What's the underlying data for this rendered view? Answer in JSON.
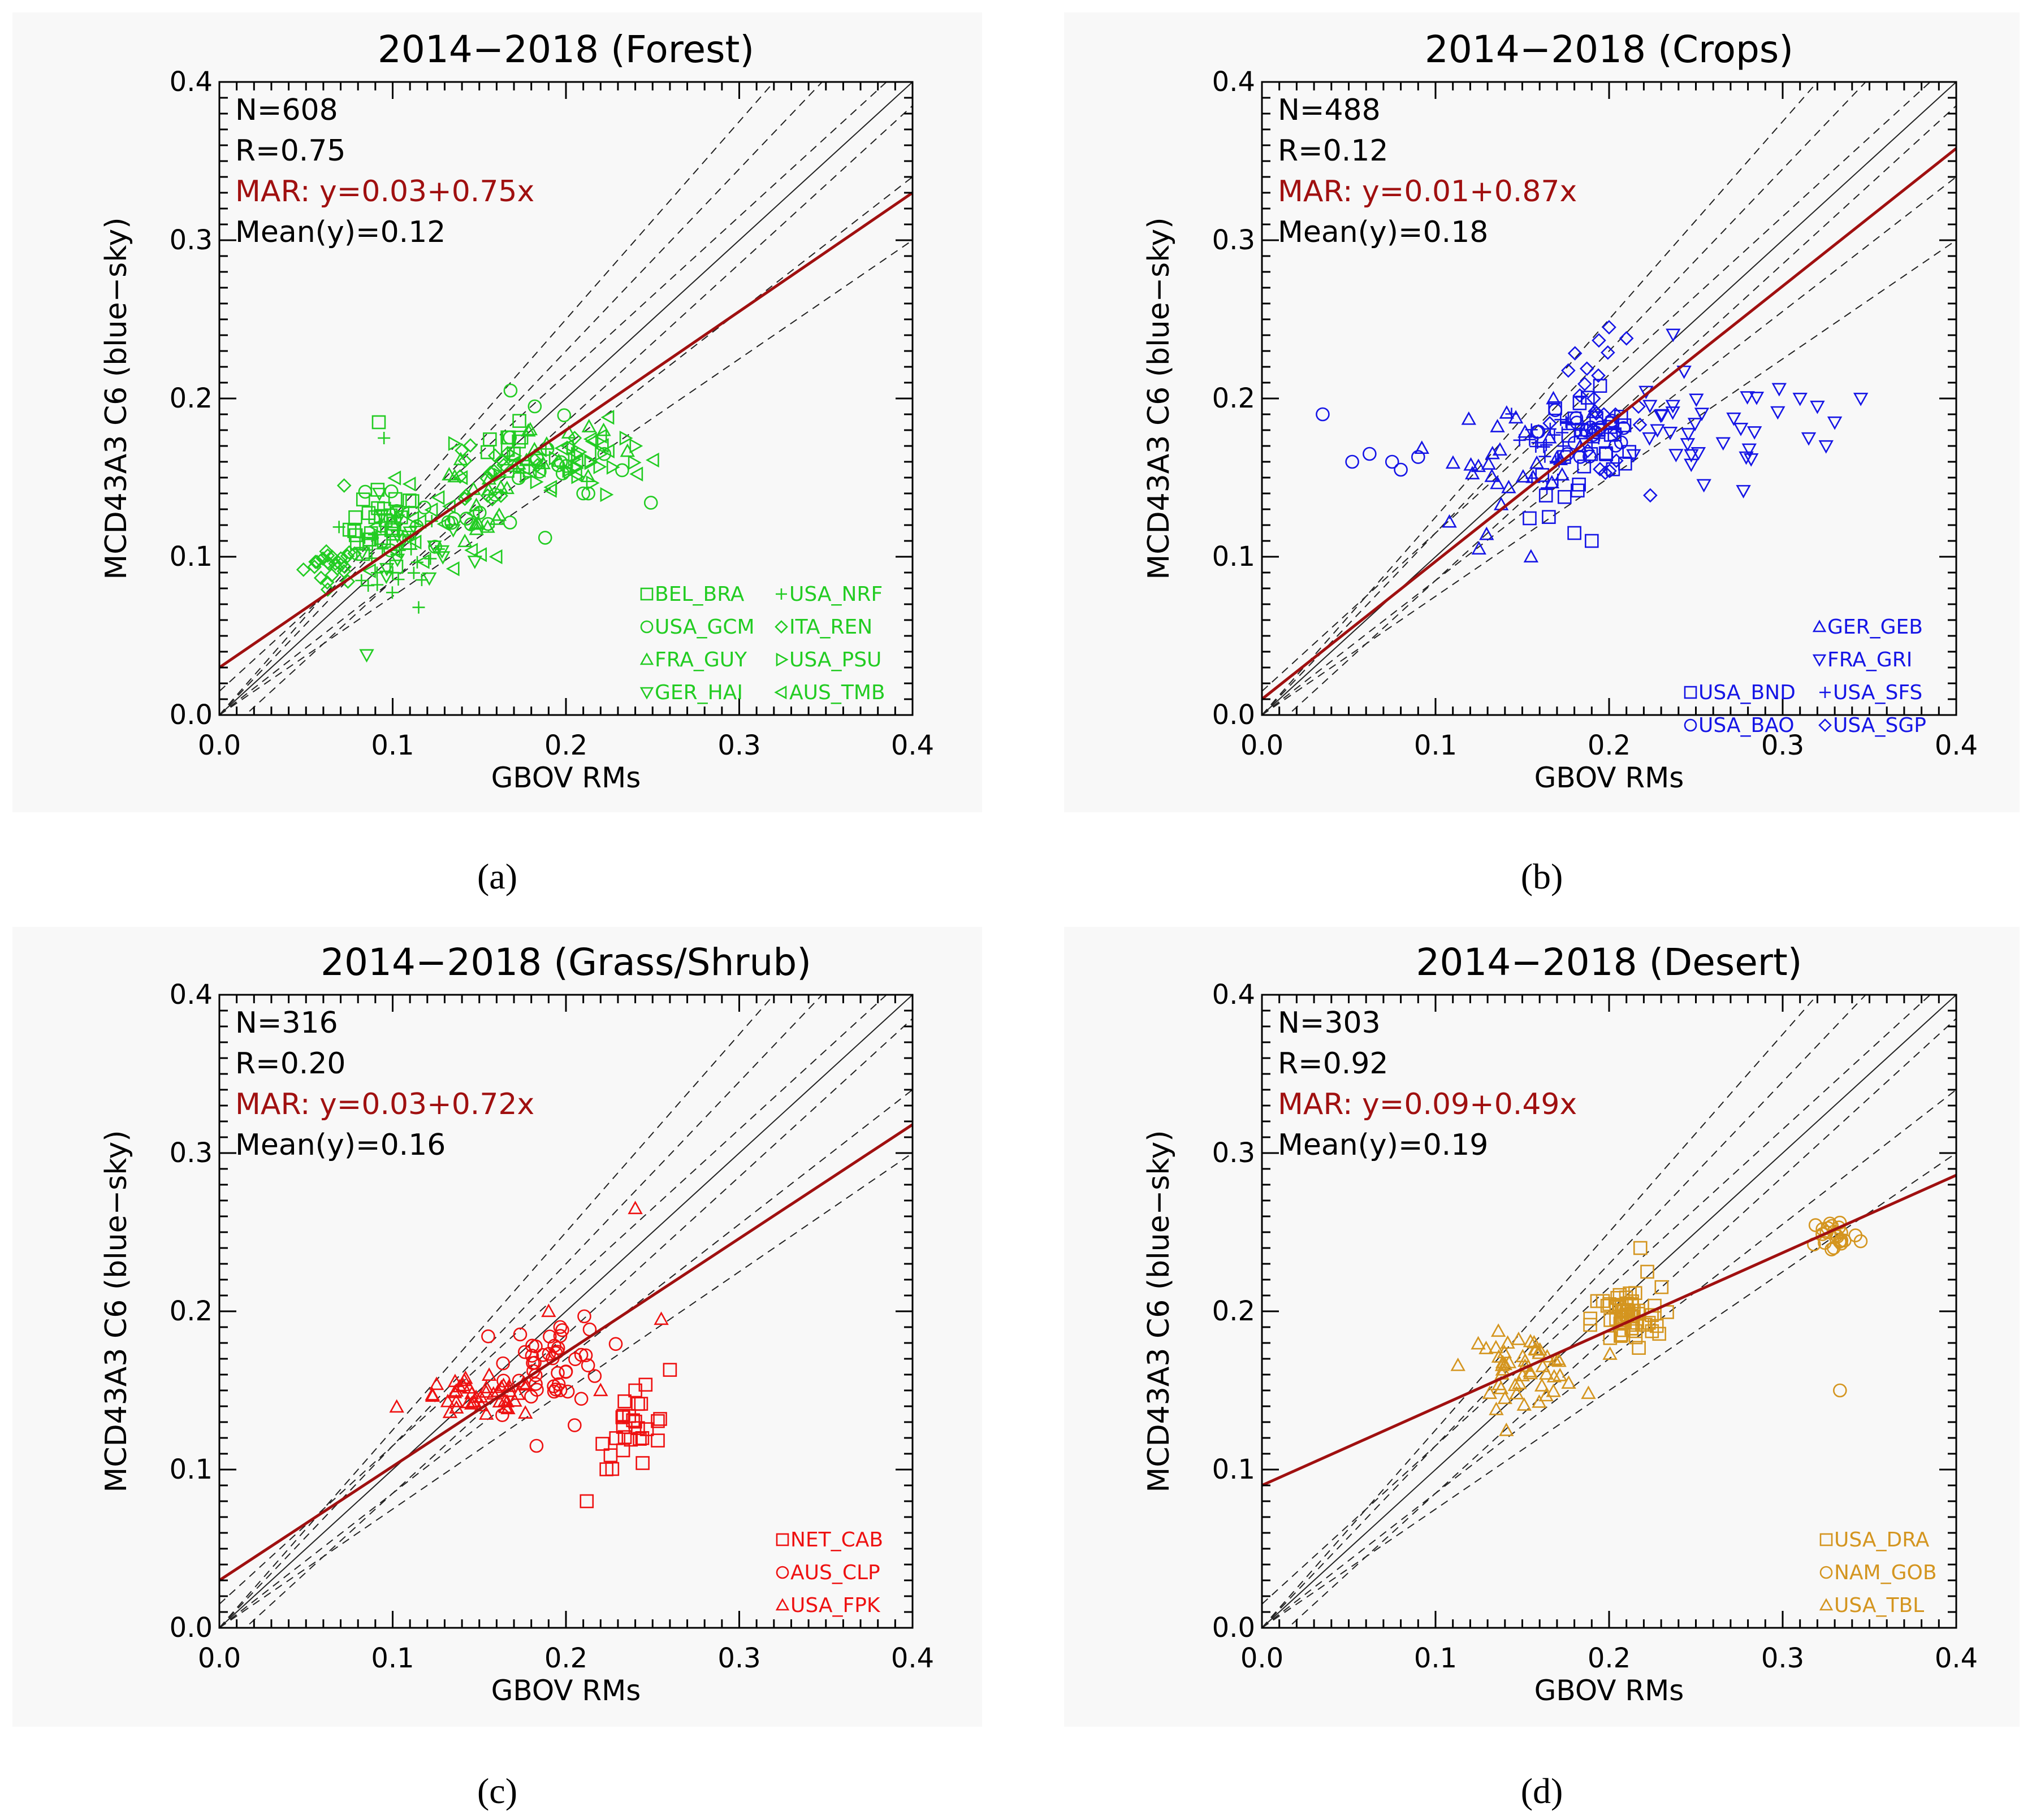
{
  "figure": {
    "panel_labels": [
      "(a)",
      "(b)",
      "(c)",
      "(d)"
    ]
  },
  "chart_data": [
    {
      "type": "scatter",
      "title": "2014−2018 (Forest)",
      "xlabel": "GBOV RMs",
      "ylabel": "MCD43A3 C6 (blue−sky)",
      "xlim": [
        0.0,
        0.4
      ],
      "ylim": [
        0.0,
        0.4
      ],
      "xticks": [
        "0.0",
        "0.1",
        "0.2",
        "0.3",
        "0.4"
      ],
      "yticks": [
        "0.0",
        "0.1",
        "0.2",
        "0.3",
        "0.4"
      ],
      "color": "#22cc22",
      "reg_color": "#a01010",
      "stats": {
        "n": "N=608",
        "r": "R=0.75",
        "mar": "MAR:  y=0.03+0.75x",
        "mean": "Mean(y)=0.12"
      },
      "regression": {
        "intercept": 0.03,
        "slope": 0.75
      },
      "legend": [
        {
          "marker": "square",
          "label": "BEL_BRA"
        },
        {
          "marker": "plus",
          "label": "USA_NRF"
        },
        {
          "marker": "circle",
          "label": "USA_GCM"
        },
        {
          "marker": "diamond",
          "label": "ITA_REN"
        },
        {
          "marker": "triangle-up",
          "label": "FRA_GUY"
        },
        {
          "marker": "triangle-right",
          "label": "USA_PSU"
        },
        {
          "marker": "triangle-down",
          "label": "GER_HAI"
        },
        {
          "marker": "triangle-left",
          "label": "AUS_TMB"
        }
      ],
      "points": [
        {
          "m": "square",
          "x": 0.092,
          "y": 0.185
        },
        {
          "m": "plus",
          "x": 0.095,
          "y": 0.175
        },
        {
          "m": "diamond",
          "x": 0.072,
          "y": 0.145
        },
        {
          "m": "triangle-down",
          "x": 0.085,
          "y": 0.038
        },
        {
          "m": "plus",
          "x": 0.115,
          "y": 0.068
        },
        {
          "m": "circle",
          "x": 0.188,
          "y": 0.112
        },
        {
          "m": "circle",
          "x": 0.168,
          "y": 0.205
        },
        {
          "m": "circle",
          "x": 0.182,
          "y": 0.195
        },
        {
          "m": "square",
          "x": 0.09,
          "y": 0.125
        },
        {
          "m": "square",
          "x": 0.1,
          "y": 0.118
        },
        {
          "m": "square",
          "x": 0.095,
          "y": 0.11
        },
        {
          "m": "diamond",
          "x": 0.065,
          "y": 0.1
        },
        {
          "m": "diamond",
          "x": 0.07,
          "y": 0.095
        },
        {
          "m": "diamond",
          "x": 0.078,
          "y": 0.102
        },
        {
          "m": "plus",
          "x": 0.082,
          "y": 0.085
        },
        {
          "m": "plus",
          "x": 0.1,
          "y": 0.09
        },
        {
          "m": "triangle-left",
          "x": 0.14,
          "y": 0.15
        },
        {
          "m": "triangle-left",
          "x": 0.16,
          "y": 0.1
        },
        {
          "m": "triangle-right",
          "x": 0.22,
          "y": 0.165
        },
        {
          "m": "triangle-right",
          "x": 0.24,
          "y": 0.17
        },
        {
          "m": "circle",
          "x": 0.21,
          "y": 0.14
        },
        {
          "m": "diamond",
          "x": 0.205,
          "y": 0.175
        }
      ],
      "clusters": [
        {
          "m": "diamond",
          "cx": 0.065,
          "cy": 0.095,
          "sx": 0.008,
          "sy": 0.006,
          "n": 22
        },
        {
          "m": "square",
          "cx": 0.095,
          "cy": 0.118,
          "sx": 0.01,
          "sy": 0.012,
          "n": 28
        },
        {
          "m": "plus",
          "cx": 0.1,
          "cy": 0.1,
          "sx": 0.015,
          "sy": 0.015,
          "n": 22
        },
        {
          "m": "triangle-down",
          "cx": 0.105,
          "cy": 0.105,
          "sx": 0.02,
          "sy": 0.014,
          "n": 18
        },
        {
          "m": "triangle-left",
          "cx": 0.125,
          "cy": 0.115,
          "sx": 0.02,
          "sy": 0.016,
          "n": 18
        },
        {
          "m": "circle",
          "cx": 0.13,
          "cy": 0.125,
          "sx": 0.02,
          "sy": 0.015,
          "n": 16
        },
        {
          "m": "triangle-up",
          "cx": 0.14,
          "cy": 0.135,
          "sx": 0.02,
          "sy": 0.015,
          "n": 16
        },
        {
          "m": "diamond",
          "cx": 0.16,
          "cy": 0.155,
          "sx": 0.02,
          "sy": 0.015,
          "n": 18
        },
        {
          "m": "triangle-right",
          "cx": 0.205,
          "cy": 0.16,
          "sx": 0.02,
          "sy": 0.01,
          "n": 22
        },
        {
          "m": "triangle-left",
          "cx": 0.21,
          "cy": 0.165,
          "sx": 0.018,
          "sy": 0.01,
          "n": 16
        },
        {
          "m": "circle",
          "cx": 0.2,
          "cy": 0.16,
          "sx": 0.018,
          "sy": 0.013,
          "n": 14
        },
        {
          "m": "triangle-up",
          "cx": 0.18,
          "cy": 0.17,
          "sx": 0.02,
          "sy": 0.012,
          "n": 14
        },
        {
          "m": "square",
          "cx": 0.17,
          "cy": 0.165,
          "sx": 0.018,
          "sy": 0.012,
          "n": 12
        }
      ]
    },
    {
      "type": "scatter",
      "title": "2014−2018 (Crops)",
      "xlabel": "GBOV RMs",
      "ylabel": "MCD43A3 C6 (blue−sky)",
      "xlim": [
        0.0,
        0.4
      ],
      "ylim": [
        0.0,
        0.4
      ],
      "xticks": [
        "0.0",
        "0.1",
        "0.2",
        "0.3",
        "0.4"
      ],
      "yticks": [
        "0.0",
        "0.1",
        "0.2",
        "0.3",
        "0.4"
      ],
      "color": "#1515e6",
      "reg_color": "#a01010",
      "stats": {
        "n": "N=488",
        "r": "R=0.12",
        "mar": "MAR:  y=0.01+0.87x",
        "mean": "Mean(y)=0.18"
      },
      "regression": {
        "intercept": 0.01,
        "slope": 0.87
      },
      "legend": [
        {
          "marker": "triangle-up",
          "label": "GER_GEB"
        },
        {
          "marker": "triangle-down",
          "label": "FRA_GRI"
        },
        {
          "marker": "square",
          "label": "USA_BND"
        },
        {
          "marker": "plus",
          "label": "USA_SFS"
        },
        {
          "marker": "circle",
          "label": "USA_BAO"
        },
        {
          "marker": "diamond",
          "label": "USA_SGP"
        }
      ],
      "points": [
        {
          "m": "circle",
          "x": 0.035,
          "y": 0.19
        },
        {
          "m": "circle",
          "x": 0.052,
          "y": 0.16
        },
        {
          "m": "circle",
          "x": 0.062,
          "y": 0.165
        },
        {
          "m": "circle",
          "x": 0.075,
          "y": 0.16
        },
        {
          "m": "circle",
          "x": 0.08,
          "y": 0.155
        },
        {
          "m": "circle",
          "x": 0.09,
          "y": 0.163
        },
        {
          "m": "triangle-up",
          "x": 0.108,
          "y": 0.122
        },
        {
          "m": "triangle-up",
          "x": 0.125,
          "y": 0.105
        },
        {
          "m": "triangle-up",
          "x": 0.155,
          "y": 0.1
        },
        {
          "m": "triangle-down",
          "x": 0.31,
          "y": 0.2
        },
        {
          "m": "triangle-down",
          "x": 0.32,
          "y": 0.195
        },
        {
          "m": "triangle-down",
          "x": 0.315,
          "y": 0.175
        },
        {
          "m": "triangle-down",
          "x": 0.325,
          "y": 0.17
        },
        {
          "m": "triangle-down",
          "x": 0.345,
          "y": 0.2
        },
        {
          "m": "triangle-down",
          "x": 0.33,
          "y": 0.185
        },
        {
          "m": "diamond",
          "x": 0.2,
          "y": 0.245
        },
        {
          "m": "diamond",
          "x": 0.21,
          "y": 0.238
        },
        {
          "m": "square",
          "x": 0.18,
          "y": 0.115
        },
        {
          "m": "square",
          "x": 0.19,
          "y": 0.11
        }
      ],
      "clusters": [
        {
          "m": "triangle-up",
          "cx": 0.15,
          "cy": 0.165,
          "sx": 0.02,
          "sy": 0.015,
          "n": 30
        },
        {
          "m": "plus",
          "cx": 0.17,
          "cy": 0.175,
          "sx": 0.015,
          "sy": 0.012,
          "n": 26
        },
        {
          "m": "diamond",
          "cx": 0.19,
          "cy": 0.19,
          "sx": 0.015,
          "sy": 0.02,
          "n": 24
        },
        {
          "m": "square",
          "cx": 0.19,
          "cy": 0.165,
          "sx": 0.018,
          "sy": 0.022,
          "n": 30
        },
        {
          "m": "circle",
          "cx": 0.19,
          "cy": 0.18,
          "sx": 0.015,
          "sy": 0.015,
          "n": 18
        },
        {
          "m": "triangle-down",
          "cx": 0.25,
          "cy": 0.175,
          "sx": 0.03,
          "sy": 0.02,
          "n": 34
        }
      ]
    },
    {
      "type": "scatter",
      "title": "2014−2018 (Grass/Shrub)",
      "xlabel": "GBOV RMs",
      "ylabel": "MCD43A3 C6 (blue−sky)",
      "xlim": [
        0.0,
        0.4
      ],
      "ylim": [
        0.0,
        0.4
      ],
      "xticks": [
        "0.0",
        "0.1",
        "0.2",
        "0.3",
        "0.4"
      ],
      "yticks": [
        "0.0",
        "0.1",
        "0.2",
        "0.3",
        "0.4"
      ],
      "color": "#ee1111",
      "reg_color": "#a01010",
      "stats": {
        "n": "N=316",
        "r": "R=0.20",
        "mar": "MAR:  y=0.03+0.72x",
        "mean": "Mean(y)=0.16"
      },
      "regression": {
        "intercept": 0.03,
        "slope": 0.72
      },
      "legend": [
        {
          "marker": "square",
          "label": "NET_CAB"
        },
        {
          "marker": "circle",
          "label": "AUS_CLP"
        },
        {
          "marker": "triangle-up",
          "label": "USA_FPK"
        }
      ],
      "points": [
        {
          "m": "triangle-up",
          "x": 0.24,
          "y": 0.265
        },
        {
          "m": "triangle-up",
          "x": 0.255,
          "y": 0.195
        },
        {
          "m": "triangle-up",
          "x": 0.22,
          "y": 0.15
        },
        {
          "m": "triangle-up",
          "x": 0.19,
          "y": 0.2
        },
        {
          "m": "square",
          "x": 0.212,
          "y": 0.08
        },
        {
          "m": "square",
          "x": 0.26,
          "y": 0.163
        },
        {
          "m": "square",
          "x": 0.24,
          "y": 0.15
        },
        {
          "m": "circle",
          "x": 0.183,
          "y": 0.115
        },
        {
          "m": "circle",
          "x": 0.205,
          "y": 0.128
        }
      ],
      "clusters": [
        {
          "m": "triangle-up",
          "cx": 0.15,
          "cy": 0.145,
          "sx": 0.018,
          "sy": 0.006,
          "n": 44
        },
        {
          "m": "circle",
          "cx": 0.195,
          "cy": 0.17,
          "sx": 0.014,
          "sy": 0.014,
          "n": 46
        },
        {
          "m": "square",
          "cx": 0.24,
          "cy": 0.125,
          "sx": 0.01,
          "sy": 0.012,
          "n": 26
        }
      ]
    },
    {
      "type": "scatter",
      "title": "2014−2018 (Desert)",
      "xlabel": "GBOV RMs",
      "ylabel": "MCD43A3 C6 (blue−sky)",
      "xlim": [
        0.0,
        0.4
      ],
      "ylim": [
        0.0,
        0.4
      ],
      "xticks": [
        "0.0",
        "0.1",
        "0.2",
        "0.3",
        "0.4"
      ],
      "yticks": [
        "0.0",
        "0.1",
        "0.2",
        "0.3",
        "0.4"
      ],
      "color": "#d4951f",
      "reg_color": "#a01010",
      "stats": {
        "n": "N=303",
        "r": "R=0.92",
        "mar": "MAR:  y=0.09+0.49x",
        "mean": "Mean(y)=0.19"
      },
      "regression": {
        "intercept": 0.09,
        "slope": 0.49
      },
      "legend": [
        {
          "marker": "square",
          "label": "USA_DRA"
        },
        {
          "marker": "circle",
          "label": "NAM_GOB"
        },
        {
          "marker": "triangle-up",
          "label": "USA_TBL"
        }
      ],
      "points": [
        {
          "m": "circle",
          "x": 0.333,
          "y": 0.15
        },
        {
          "m": "square",
          "x": 0.218,
          "y": 0.24
        },
        {
          "m": "square",
          "x": 0.222,
          "y": 0.225
        },
        {
          "m": "triangle-up",
          "x": 0.135,
          "y": 0.138
        },
        {
          "m": "triangle-up",
          "x": 0.14,
          "y": 0.145
        }
      ],
      "clusters": [
        {
          "m": "triangle-up",
          "cx": 0.15,
          "cy": 0.165,
          "sx": 0.016,
          "sy": 0.01,
          "n": 50
        },
        {
          "m": "square",
          "cx": 0.21,
          "cy": 0.195,
          "sx": 0.01,
          "sy": 0.01,
          "n": 58
        },
        {
          "m": "circle",
          "cx": 0.33,
          "cy": 0.248,
          "sx": 0.007,
          "sy": 0.006,
          "n": 24
        }
      ]
    }
  ]
}
